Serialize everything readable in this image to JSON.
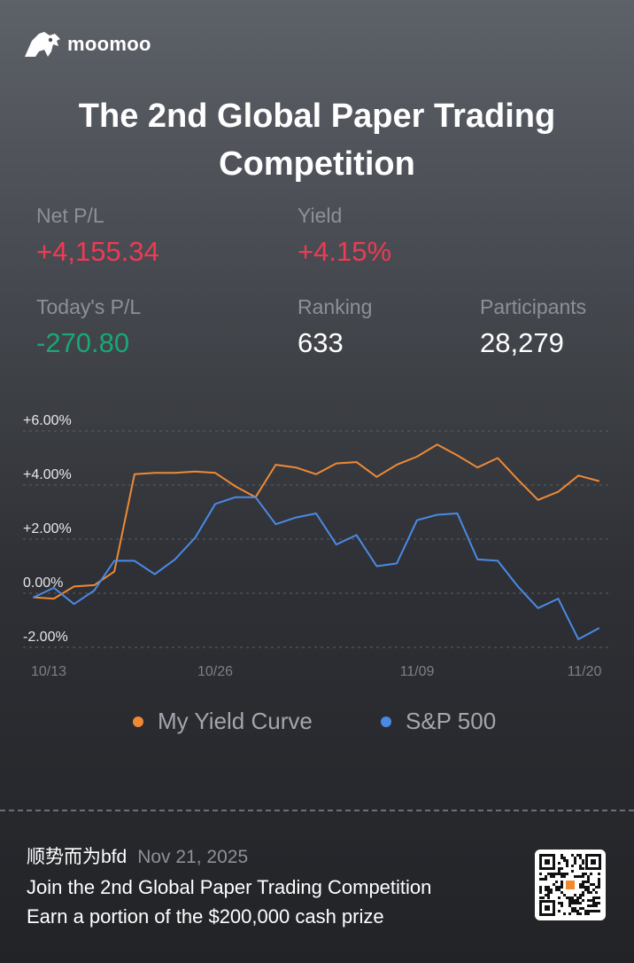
{
  "brand": {
    "name": "moomoo",
    "logo_icon": "bull-logo-icon"
  },
  "title": "The 2nd Global Paper Trading Competition",
  "stats": {
    "net_pl": {
      "label": "Net P/L",
      "value": "+4,155.34",
      "color": "#ee3b54"
    },
    "yield": {
      "label": "Yield",
      "value": "+4.15%",
      "color": "#ee3b54"
    },
    "todays_pl": {
      "label": "Today's P/L",
      "value": "-270.80",
      "color": "#19a774"
    },
    "ranking": {
      "label": "Ranking",
      "value": "633"
    },
    "participants": {
      "label": "Participants",
      "value": "28,279"
    }
  },
  "chart_data": {
    "type": "line",
    "y_ticks": [
      "+6.00%",
      "+4.00%",
      "+2.00%",
      "0.00%",
      "-2.00%"
    ],
    "x_ticks": [
      "10/13",
      "10/26",
      "11/09",
      "11/20"
    ],
    "ylim": [
      -2,
      6
    ],
    "grid": true,
    "legend_position": "bottom",
    "series": [
      {
        "name": "My Yield Curve",
        "color": "#ee8a36",
        "values": [
          -0.15,
          -0.2,
          0.25,
          0.3,
          0.8,
          4.4,
          4.45,
          4.45,
          4.5,
          4.45,
          3.95,
          3.55,
          4.75,
          4.65,
          4.4,
          4.8,
          4.85,
          4.3,
          4.75,
          5.05,
          5.5,
          5.1,
          4.65,
          5.0,
          4.2,
          3.45,
          3.75,
          4.35,
          4.15
        ]
      },
      {
        "name": "S&P 500",
        "color": "#4a8ae6",
        "values": [
          -0.15,
          0.2,
          -0.4,
          0.1,
          1.2,
          1.2,
          0.7,
          1.25,
          2.05,
          3.3,
          3.55,
          3.55,
          2.55,
          2.8,
          2.95,
          1.8,
          2.15,
          1.0,
          1.1,
          2.7,
          2.9,
          2.95,
          1.25,
          1.2,
          0.25,
          -0.55,
          -0.2,
          -1.7,
          -1.3
        ]
      }
    ]
  },
  "footer": {
    "username": "顺势而为bfd",
    "date": "Nov 21, 2025",
    "line1": "Join the 2nd Global Paper Trading Competition",
    "line2": "Earn a portion of the $200,000 cash prize",
    "qr_icon": "qr-code-icon"
  }
}
